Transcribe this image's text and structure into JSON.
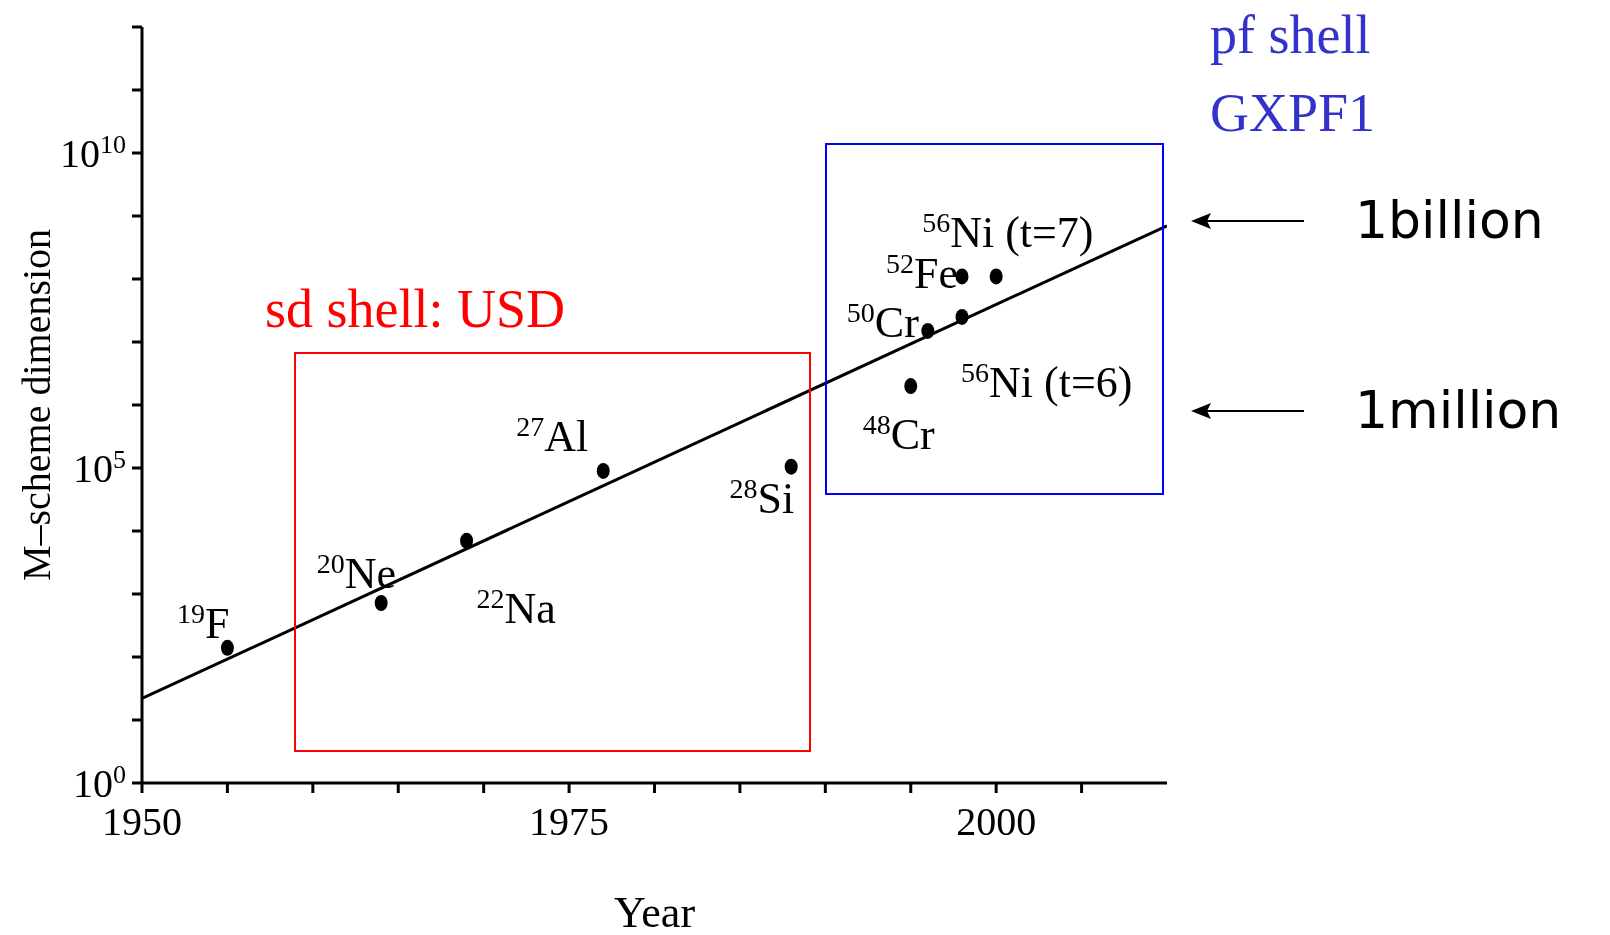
{
  "chart_data": {
    "type": "scatter",
    "xlabel": "Year",
    "ylabel": "M–scheme dimension",
    "log": "y",
    "xlim": [
      1950,
      2010
    ],
    "xticks": [
      {
        "value": 1950,
        "label": "1950"
      },
      {
        "value": 1955,
        "label": null
      },
      {
        "value": 1960,
        "label": null
      },
      {
        "value": 1965,
        "label": null
      },
      {
        "value": 1970,
        "label": null
      },
      {
        "value": 1975,
        "label": "1975"
      },
      {
        "value": 1980,
        "label": null
      },
      {
        "value": 1985,
        "label": null
      },
      {
        "value": 1990,
        "label": null
      },
      {
        "value": 1995,
        "label": null
      },
      {
        "value": 2000,
        "label": "2000"
      },
      {
        "value": 2005,
        "label": null
      }
    ],
    "ylim": [
      1,
      1000000000000
    ],
    "yticks": [
      {
        "value": 1,
        "label": "10$^{0}$"
      },
      {
        "value": 10,
        "label": null
      },
      {
        "value": 100,
        "label": null
      },
      {
        "value": 1000,
        "label": null
      },
      {
        "value": 10000,
        "label": null
      },
      {
        "value": 100000,
        "label": "10$^{5}$"
      },
      {
        "value": 1000000,
        "label": null
      },
      {
        "value": 10000000,
        "label": null
      },
      {
        "value": 100000000,
        "label": null
      },
      {
        "value": 1000000000,
        "label": null
      },
      {
        "value": 10000000000,
        "label": "10$^{10}$"
      },
      {
        "value": 100000000000,
        "label": null
      },
      {
        "value": 1000000000000,
        "label": null
      }
    ],
    "series": [
      {
        "marker": "circle",
        "color": "#000000",
        "x": [
          1955,
          1964,
          1969,
          1977,
          1988,
          1995,
          1996,
          1998,
          1998,
          2000
        ],
        "values": [
          140,
          720,
          7000,
          90000,
          105000,
          2000000,
          15000000,
          25000000,
          110000000,
          110000000
        ]
      },
      {
        "type": "line",
        "color": "#000000",
        "x": [
          1950,
          2010
        ],
        "values": [
          22,
          700000000
        ]
      }
    ],
    "annotations": [
      {
        "text": "$^{19}$F",
        "x": 1955,
        "y": 140
      },
      {
        "text": "$^{20}$Ne",
        "x": 1964,
        "y": 720
      },
      {
        "text": "$^{22}$Na",
        "x": 1969,
        "y": 7000
      },
      {
        "text": "$^{27}$Al",
        "x": 1977,
        "y": 90000
      },
      {
        "text": "$^{28}$Si",
        "x": 1988,
        "y": 105000
      },
      {
        "text": "$^{48}$Cr",
        "x": 1995,
        "y": 2000000
      },
      {
        "text": "$^{50}$Cr",
        "x": 1996,
        "y": 15000000
      },
      {
        "text": "$^{56}$Ni (t=6)",
        "x": 1998,
        "y": 25000000
      },
      {
        "text": "$^{52}$Fe",
        "x": 1998,
        "y": 110000000
      },
      {
        "text": "$^{56}$Ni (t=7)",
        "x": 2000,
        "y": 110000000
      },
      "sd shell: USD",
      "pf shell",
      "GXPF1",
      "1billion",
      "1million"
    ]
  }
}
